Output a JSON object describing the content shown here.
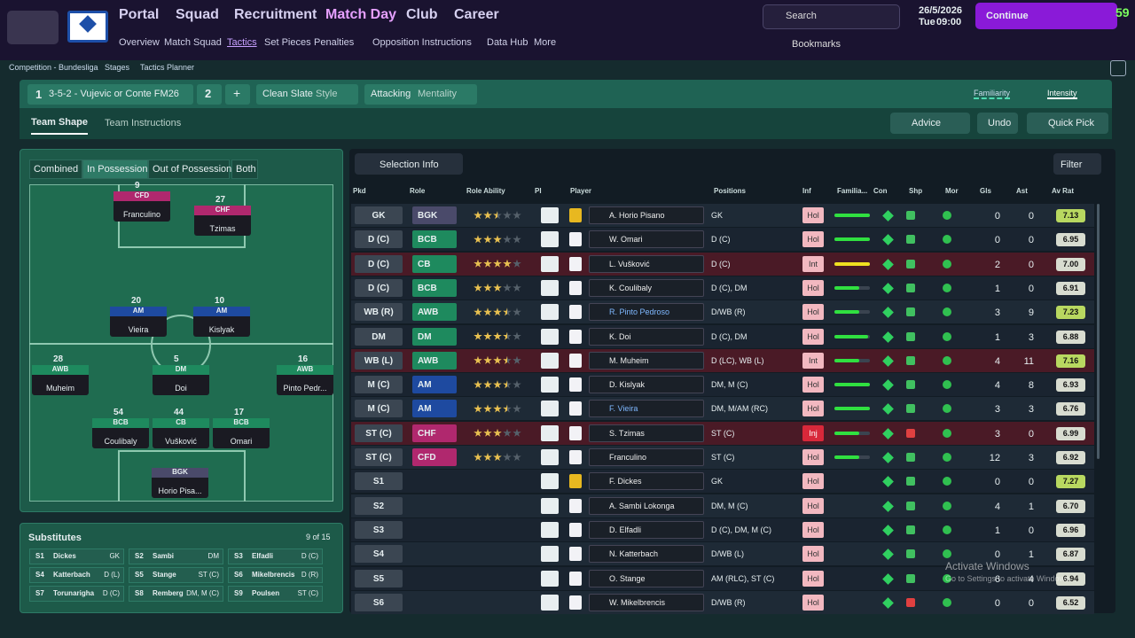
{
  "nav": {
    "menus": [
      "Portal",
      "Squad",
      "Recruitment",
      "Match Day",
      "Club",
      "Career"
    ],
    "submenu": [
      "Overview",
      "Match Squad",
      "Tactics",
      "Set Pieces",
      "Penalties",
      "Opposition Instructions",
      "Data Hub",
      "More"
    ],
    "search": "Search",
    "date": "26/5/2026",
    "day": "Tue",
    "time": "09:00",
    "continue": "Continue",
    "fps": "59",
    "bookmarks": "Bookmarks"
  },
  "breadcrumb": [
    "Competition - Bundesliga",
    "Stages",
    "Tactics Planner"
  ],
  "tactic": {
    "number": "1",
    "name": "3-5-2 - Vujevic or Conte FM26",
    "slot": "2",
    "add": "+",
    "style_value": "Clean Slate",
    "style_label": "Style",
    "mentality_value": "Attacking",
    "mentality_label": "Mentality",
    "familiarity": "Familiarity",
    "intensity": "Intensity"
  },
  "tabs": [
    "Team Shape",
    "Team Instructions"
  ],
  "buttons": [
    "Advice",
    "Undo",
    "Quick Pick"
  ],
  "pitch_tabs": [
    "Combined",
    "In Possession",
    "Out of Possession",
    "Both"
  ],
  "pitch": [
    {
      "role": "CFD",
      "name": "Franculino",
      "number": "9"
    },
    {
      "role": "CHF",
      "name": "Tzimas",
      "number": "27"
    },
    {
      "role": "AM",
      "name": "Vieira",
      "number": "20"
    },
    {
      "role": "AM",
      "name": "Kislyak",
      "number": "10"
    },
    {
      "role": "AWB",
      "name": "Muheim",
      "number": "28"
    },
    {
      "role": "DM",
      "name": "Doi",
      "number": "5"
    },
    {
      "role": "AWB",
      "name": "Pinto Pedr...",
      "number": "16"
    },
    {
      "role": "BCB",
      "name": "Coulibaly",
      "number": "54"
    },
    {
      "role": "CB",
      "name": "Vušković",
      "number": "44"
    },
    {
      "role": "BCB",
      "name": "Omari",
      "number": "17"
    },
    {
      "role": "BGK",
      "name": "Horio Pisa...",
      "number": null
    }
  ],
  "subs": {
    "title": "Substitutes",
    "count": "9 of 15",
    "items": [
      [
        "S1",
        "Dickes",
        "GK"
      ],
      [
        "S2",
        "Sambi",
        "DM"
      ],
      [
        "S3",
        "Elfadli",
        "D (C)"
      ],
      [
        "S4",
        "Katterbach",
        "D (L)"
      ],
      [
        "S5",
        "Stange",
        "ST (C)"
      ],
      [
        "S6",
        "Mikelbrencis",
        "D (R)"
      ],
      [
        "S7",
        "Torunarigha",
        "D (C)"
      ],
      [
        "S8",
        "Remberg",
        "DM, M (C)"
      ],
      [
        "S9",
        "Poulsen",
        "ST (C)"
      ]
    ]
  },
  "table": {
    "selection": "Selection Info",
    "filter": "Filter",
    "columns": [
      "Pkd",
      "Role",
      "Role Ability",
      "PI",
      "Player",
      "Positions",
      "Inf",
      "Familia...",
      "Con",
      "Shp",
      "Mor",
      "Gls",
      "Ast",
      "Av Rat"
    ],
    "rows": [
      {
        "pkd": "GK",
        "role": "BGK",
        "ability": 2.5,
        "player": "A. Horio Pisano",
        "positions": "GK",
        "inf": "Hol",
        "fam": 100,
        "gls": 0,
        "ast": 0,
        "rat": "7.13"
      },
      {
        "pkd": "D (C)",
        "role": "BCB",
        "ability": 3,
        "player": "W. Omari",
        "positions": "D (C)",
        "inf": "Hol",
        "fam": 100,
        "gls": 0,
        "ast": 0,
        "rat": "6.95"
      },
      {
        "pkd": "D (C)",
        "role": "CB",
        "ability": 4,
        "player": "L. Vušković",
        "positions": "D (C)",
        "inf": "Int",
        "fam": 100,
        "gls": 2,
        "ast": 0,
        "rat": "7.00"
      },
      {
        "pkd": "D (C)",
        "role": "BCB",
        "ability": 3,
        "player": "K. Coulibaly",
        "positions": "D (C), DM",
        "inf": "Hol",
        "fam": 70,
        "gls": 1,
        "ast": 0,
        "rat": "6.91"
      },
      {
        "pkd": "WB (R)",
        "role": "AWB",
        "ability": 3.5,
        "player": "R. Pinto Pedroso",
        "positions": "D/WB (R)",
        "inf": "Hol",
        "fam": 70,
        "gls": 3,
        "ast": 9,
        "rat": "7.23"
      },
      {
        "pkd": "DM",
        "role": "DM",
        "ability": 3.5,
        "player": "K. Doi",
        "positions": "D (C), DM",
        "inf": "Hol",
        "fam": 95,
        "gls": 1,
        "ast": 3,
        "rat": "6.88"
      },
      {
        "pkd": "WB (L)",
        "role": "AWB",
        "ability": 3.5,
        "player": "M. Muheim",
        "positions": "D (LC), WB (L)",
        "inf": "Int",
        "fam": 70,
        "gls": 4,
        "ast": 11,
        "rat": "7.16"
      },
      {
        "pkd": "M (C)",
        "role": "AM",
        "ability": 3.5,
        "player": "D. Kislyak",
        "positions": "DM, M (C)",
        "inf": "Hol",
        "fam": 100,
        "gls": 4,
        "ast": 8,
        "rat": "6.93"
      },
      {
        "pkd": "M (C)",
        "role": "AM",
        "ability": 3.5,
        "player": "F. Vieira",
        "positions": "DM, M/AM (RC)",
        "inf": "Hol",
        "fam": 100,
        "gls": 3,
        "ast": 3,
        "rat": "6.76"
      },
      {
        "pkd": "ST (C)",
        "role": "CHF",
        "ability": 3,
        "player": "S. Tzimas",
        "positions": "ST (C)",
        "inf": "Inj",
        "fam": 70,
        "gls": 3,
        "ast": 0,
        "rat": "6.99"
      },
      {
        "pkd": "ST (C)",
        "role": "CFD",
        "ability": 3,
        "player": "Franculino",
        "positions": "ST (C)",
        "inf": "Hol",
        "fam": 70,
        "gls": 12,
        "ast": 3,
        "rat": "6.92"
      },
      {
        "pkd": "S1",
        "player": "F. Dickes",
        "positions": "GK",
        "inf": "Hol",
        "gls": 0,
        "ast": 0,
        "rat": "7.27"
      },
      {
        "pkd": "S2",
        "player": "A. Sambi Lokonga",
        "positions": "DM, M (C)",
        "inf": "Hol",
        "gls": 4,
        "ast": 1,
        "rat": "6.70"
      },
      {
        "pkd": "S3",
        "player": "D. Elfadli",
        "positions": "D (C), DM, M (C)",
        "inf": "Hol",
        "gls": 1,
        "ast": 0,
        "rat": "6.96"
      },
      {
        "pkd": "S4",
        "player": "N. Katterbach",
        "positions": "D/WB (L)",
        "inf": "Hol",
        "gls": 0,
        "ast": 1,
        "rat": "6.87"
      },
      {
        "pkd": "S5",
        "player": "O. Stange",
        "positions": "AM (RLC), ST (C)",
        "inf": "Hol",
        "gls": 6,
        "ast": 4,
        "rat": "6.94"
      },
      {
        "pkd": "S6",
        "player": "W. Mikelbrencis",
        "positions": "D/WB (R)",
        "inf": "Hol",
        "gls": 0,
        "ast": 0,
        "rat": "6.52"
      }
    ]
  },
  "watermark": [
    "Activate Windows",
    "Go to Settings to activate Windows."
  ]
}
